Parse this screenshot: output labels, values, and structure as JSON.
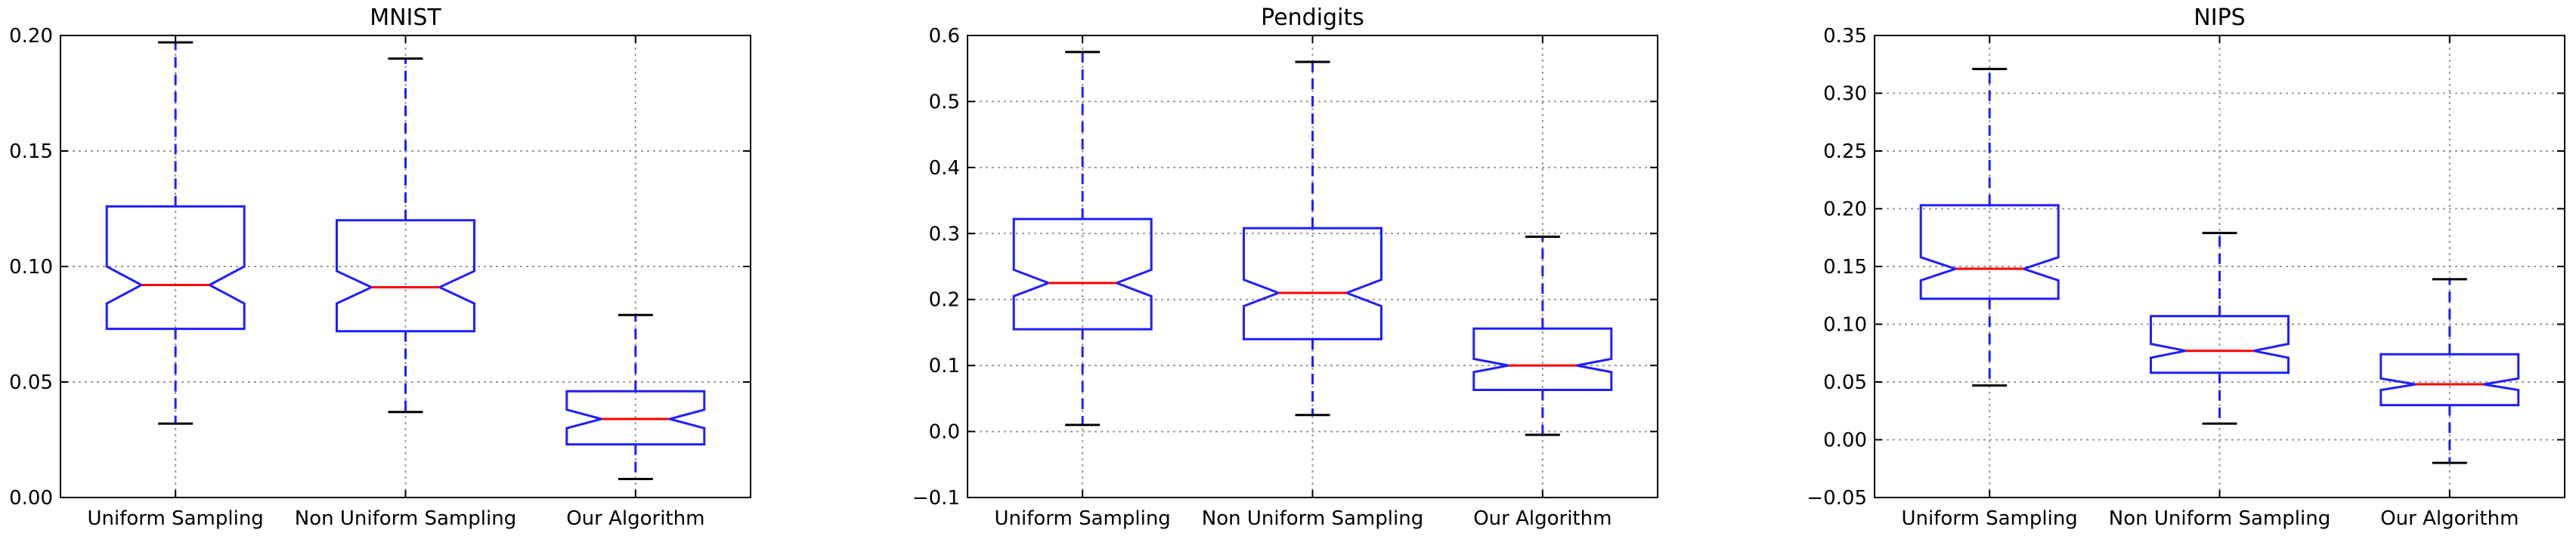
{
  "chart_data": [
    {
      "type": "box",
      "title": "MNIST",
      "xlabel": "",
      "ylabel": "",
      "ylim": [
        0.0,
        0.2
      ],
      "yticks": [
        0.0,
        0.05,
        0.1,
        0.15,
        0.2
      ],
      "ytick_labels": [
        "0.00",
        "0.05",
        "0.10",
        "0.15",
        "0.20"
      ],
      "grid": true,
      "categories": [
        "Uniform Sampling",
        "Non Uniform Sampling",
        "Our Algorithm"
      ],
      "boxes": [
        {
          "whisker_low": 0.032,
          "q1": 0.073,
          "median": 0.092,
          "q3": 0.126,
          "whisker_high": 0.197,
          "notch_low": 0.084,
          "notch_high": 0.1
        },
        {
          "whisker_low": 0.037,
          "q1": 0.072,
          "median": 0.091,
          "q3": 0.12,
          "whisker_high": 0.19,
          "notch_low": 0.084,
          "notch_high": 0.098
        },
        {
          "whisker_low": 0.008,
          "q1": 0.023,
          "median": 0.034,
          "q3": 0.046,
          "whisker_high": 0.079,
          "notch_low": 0.03,
          "notch_high": 0.038
        }
      ]
    },
    {
      "type": "box",
      "title": "Pendigits",
      "xlabel": "",
      "ylabel": "",
      "ylim": [
        -0.1,
        0.6
      ],
      "yticks": [
        -0.1,
        0.0,
        0.1,
        0.2,
        0.3,
        0.4,
        0.5,
        0.6
      ],
      "ytick_labels": [
        "−0.1",
        "0.0",
        "0.1",
        "0.2",
        "0.3",
        "0.4",
        "0.5",
        "0.6"
      ],
      "grid": true,
      "categories": [
        "Uniform Sampling",
        "Non Uniform Sampling",
        "Our Algorithm"
      ],
      "boxes": [
        {
          "whisker_low": 0.01,
          "q1": 0.155,
          "median": 0.225,
          "q3": 0.322,
          "whisker_high": 0.575,
          "notch_low": 0.205,
          "notch_high": 0.245
        },
        {
          "whisker_low": 0.025,
          "q1": 0.14,
          "median": 0.21,
          "q3": 0.308,
          "whisker_high": 0.56,
          "notch_low": 0.19,
          "notch_high": 0.23
        },
        {
          "whisker_low": -0.005,
          "q1": 0.063,
          "median": 0.1,
          "q3": 0.156,
          "whisker_high": 0.295,
          "notch_low": 0.09,
          "notch_high": 0.11
        }
      ]
    },
    {
      "type": "box",
      "title": "NIPS",
      "xlabel": "",
      "ylabel": "",
      "ylim": [
        -0.05,
        0.35
      ],
      "yticks": [
        -0.05,
        0.0,
        0.05,
        0.1,
        0.15,
        0.2,
        0.25,
        0.3,
        0.35
      ],
      "ytick_labels": [
        "−0.05",
        "0.00",
        "0.05",
        "0.10",
        "0.15",
        "0.20",
        "0.25",
        "0.30",
        "0.35"
      ],
      "grid": true,
      "categories": [
        "Uniform Sampling",
        "Non Uniform Sampling",
        "Our Algorithm"
      ],
      "boxes": [
        {
          "whisker_low": 0.047,
          "q1": 0.122,
          "median": 0.148,
          "q3": 0.203,
          "whisker_high": 0.321,
          "notch_low": 0.138,
          "notch_high": 0.158
        },
        {
          "whisker_low": 0.014,
          "q1": 0.058,
          "median": 0.077,
          "q3": 0.107,
          "whisker_high": 0.179,
          "notch_low": 0.071,
          "notch_high": 0.083
        },
        {
          "whisker_low": -0.02,
          "q1": 0.03,
          "median": 0.048,
          "q3": 0.074,
          "whisker_high": 0.139,
          "notch_low": 0.043,
          "notch_high": 0.053
        }
      ]
    }
  ]
}
